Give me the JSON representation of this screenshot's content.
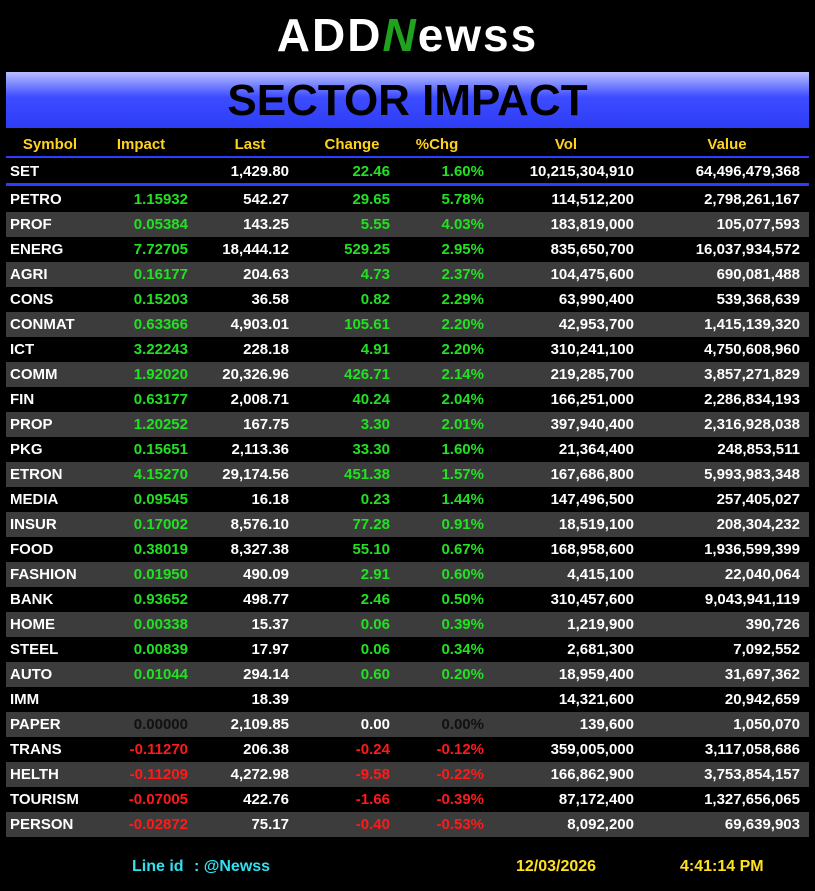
{
  "header": {
    "logo": [
      "ADD",
      "N",
      "ewss"
    ],
    "title": "SECTOR IMPACT"
  },
  "table": {
    "columns": [
      "Symbol",
      "Impact",
      "Last",
      "Change",
      "%Chg",
      "Vol",
      "Value"
    ],
    "index_row": [
      "SET",
      null,
      "1,429.80",
      "22.46",
      "1.60%",
      "10,215,304,910",
      "64,496,479,368"
    ],
    "rows": [
      [
        "PETRO",
        "1.15932",
        "542.27",
        "29.65",
        "5.78%",
        "114,512,200",
        "2,798,261,167"
      ],
      [
        "PROF",
        "0.05384",
        "143.25",
        "5.55",
        "4.03%",
        "183,819,000",
        "105,077,593"
      ],
      [
        "ENERG",
        "7.72705",
        "18,444.12",
        "529.25",
        "2.95%",
        "835,650,700",
        "16,037,934,572"
      ],
      [
        "AGRI",
        "0.16177",
        "204.63",
        "4.73",
        "2.37%",
        "104,475,600",
        "690,081,488"
      ],
      [
        "CONS",
        "0.15203",
        "36.58",
        "0.82",
        "2.29%",
        "63,990,400",
        "539,368,639"
      ],
      [
        "CONMAT",
        "0.63366",
        "4,903.01",
        "105.61",
        "2.20%",
        "42,953,700",
        "1,415,139,320"
      ],
      [
        "ICT",
        "3.22243",
        "228.18",
        "4.91",
        "2.20%",
        "310,241,100",
        "4,750,608,960"
      ],
      [
        "COMM",
        "1.92020",
        "20,326.96",
        "426.71",
        "2.14%",
        "219,285,700",
        "3,857,271,829"
      ],
      [
        "FIN",
        "0.63177",
        "2,008.71",
        "40.24",
        "2.04%",
        "166,251,000",
        "2,286,834,193"
      ],
      [
        "PROP",
        "1.20252",
        "167.75",
        "3.30",
        "2.01%",
        "397,940,400",
        "2,316,928,038"
      ],
      [
        "PKG",
        "0.15651",
        "2,113.36",
        "33.30",
        "1.60%",
        "21,364,400",
        "248,853,511"
      ],
      [
        "ETRON",
        "4.15270",
        "29,174.56",
        "451.38",
        "1.57%",
        "167,686,800",
        "5,993,983,348"
      ],
      [
        "MEDIA",
        "0.09545",
        "16.18",
        "0.23",
        "1.44%",
        "147,496,500",
        "257,405,027"
      ],
      [
        "INSUR",
        "0.17002",
        "8,576.10",
        "77.28",
        "0.91%",
        "18,519,100",
        "208,304,232"
      ],
      [
        "FOOD",
        "0.38019",
        "8,327.38",
        "55.10",
        "0.67%",
        "168,958,600",
        "1,936,599,399"
      ],
      [
        "FASHION",
        "0.01950",
        "490.09",
        "2.91",
        "0.60%",
        "4,415,100",
        "22,040,064"
      ],
      [
        "BANK",
        "0.93652",
        "498.77",
        "2.46",
        "0.50%",
        "310,457,600",
        "9,043,941,119"
      ],
      [
        "HOME",
        "0.00338",
        "15.37",
        "0.06",
        "0.39%",
        "1,219,900",
        "390,726"
      ],
      [
        "STEEL",
        "0.00839",
        "17.97",
        "0.06",
        "0.34%",
        "2,681,300",
        "7,092,552"
      ],
      [
        "AUTO",
        "0.01044",
        "294.14",
        "0.60",
        "0.20%",
        "18,959,400",
        "31,697,362"
      ],
      [
        "IMM",
        null,
        "18.39",
        null,
        null,
        "14,321,600",
        "20,942,659"
      ],
      [
        "PAPER",
        "0.00000",
        "2,109.85",
        "0.00",
        "0.00%",
        "139,600",
        "1,050,070"
      ],
      [
        "TRANS",
        "-0.11270",
        "206.38",
        "-0.24",
        "-0.12%",
        "359,005,000",
        "3,117,058,686"
      ],
      [
        "HELTH",
        "-0.11209",
        "4,272.98",
        "-9.58",
        "-0.22%",
        "166,862,900",
        "3,753,854,157"
      ],
      [
        "TOURISM",
        "-0.07005",
        "422.76",
        "-1.66",
        "-0.39%",
        "87,172,400",
        "1,327,656,065"
      ],
      [
        "PERSON",
        "-0.02872",
        "75.17",
        "-0.40",
        "-0.53%",
        "8,092,200",
        "69,639,903"
      ]
    ]
  },
  "footer": {
    "line_label": "Line id",
    ":id": ": @Newss",
    "date": "12/03/2026",
    "time": "4:41:14 PM"
  }
}
